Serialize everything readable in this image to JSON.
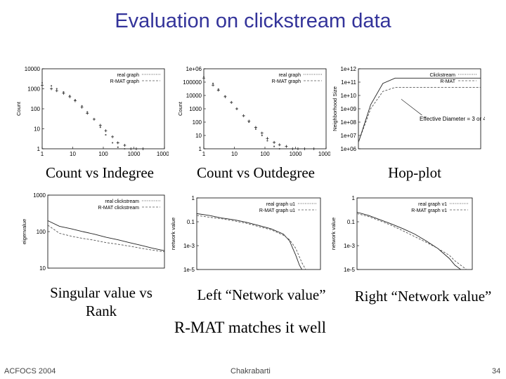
{
  "slide": {
    "title": "Evaluation on clickstream data",
    "tagline": "R-MAT matches it well",
    "footer_left": "ACFOCS 2004",
    "footer_center": "Chakrabarti",
    "page_number": "34"
  },
  "captions": {
    "c1": "Count vs Indegree",
    "c2": "Count vs Outdegree",
    "c3": "Hop-plot",
    "c4_line1": "Singular value vs",
    "c4_line2": "Rank",
    "c5": "Left “Network value”",
    "c6": "Right “Network value”"
  },
  "chart_data": [
    {
      "id": "indegree",
      "type": "scatter",
      "xscale": "log",
      "yscale": "log",
      "xlim": [
        1,
        10000
      ],
      "ylim": [
        1,
        10000
      ],
      "xticks": [
        "1",
        "10",
        "100",
        "1000",
        "10000"
      ],
      "yticks": [
        "1",
        "10",
        "100",
        "1000",
        "10000"
      ],
      "ylabel": "Count",
      "legend": "top-right",
      "series": [
        {
          "name": "real graph",
          "x": [
            1,
            2,
            3,
            5,
            8,
            12,
            20,
            30,
            50,
            80,
            120,
            200,
            300,
            500,
            800,
            1200,
            2000
          ],
          "y": [
            1500,
            1000,
            800,
            600,
            400,
            250,
            120,
            60,
            30,
            15,
            8,
            4,
            2,
            1.5,
            1,
            1,
            1
          ]
        },
        {
          "name": "R-MAT graph",
          "x": [
            1,
            2,
            3,
            5,
            8,
            12,
            20,
            30,
            50,
            80,
            120,
            200,
            300,
            500,
            800
          ],
          "y": [
            2000,
            1400,
            1000,
            700,
            450,
            280,
            140,
            70,
            30,
            12,
            5,
            2,
            1.2,
            1,
            1
          ]
        }
      ]
    },
    {
      "id": "outdegree",
      "type": "scatter",
      "xscale": "log",
      "yscale": "log",
      "xlim": [
        1,
        10000
      ],
      "ylim": [
        1,
        1000000
      ],
      "xticks": [
        "1",
        "10",
        "100",
        "1000",
        "10000"
      ],
      "yticks": [
        "1",
        "10",
        "100",
        "1000",
        "10000",
        "100000",
        "1e+06"
      ],
      "ylabel": "Count",
      "legend": "top-right",
      "series": [
        {
          "name": "real graph",
          "x": [
            1,
            2,
            3,
            5,
            8,
            12,
            20,
            30,
            50,
            80,
            120,
            200,
            300,
            500,
            800,
            1200,
            2000,
            4000
          ],
          "y": [
            200000,
            60000,
            25000,
            8000,
            3000,
            1000,
            300,
            120,
            40,
            15,
            6,
            3,
            2,
            1.5,
            1,
            1,
            1,
            1
          ]
        },
        {
          "name": "R-MAT graph",
          "x": [
            1,
            2,
            3,
            5,
            8,
            12,
            20,
            30,
            50,
            80,
            120,
            200,
            300
          ],
          "y": [
            250000,
            80000,
            30000,
            9000,
            3000,
            1000,
            300,
            100,
            30,
            10,
            4,
            1.5,
            1
          ]
        }
      ]
    },
    {
      "id": "hopplot",
      "type": "line",
      "xscale": "linear",
      "yscale": "log",
      "xlim": [
        0,
        10
      ],
      "ylim": [
        1000000,
        1000000000000
      ],
      "yticks": [
        "1e+06",
        "1e+07",
        "1e+08",
        "1e+09",
        "1e+10",
        "1e+11",
        "1e+12"
      ],
      "ylabel": "Neighborhood Size",
      "legend": "top-right",
      "annotation": "Effective Diameter = 3 or 4",
      "series": [
        {
          "name": "Clickstream",
          "x": [
            0,
            1,
            2,
            3,
            4,
            5,
            10
          ],
          "y": [
            3000000,
            2000000000,
            80000000000,
            200000000000,
            200000000000,
            200000000000,
            200000000000
          ]
        },
        {
          "name": "R-MAT",
          "x": [
            0,
            1,
            2,
            3,
            4,
            5,
            10
          ],
          "y": [
            3000000,
            1000000000,
            20000000000,
            40000000000,
            40000000000,
            40000000000,
            40000000000
          ]
        }
      ]
    },
    {
      "id": "singular",
      "type": "line",
      "xscale": "linear",
      "yscale": "log",
      "xlim": [
        0,
        10
      ],
      "ylim": [
        10,
        1000
      ],
      "yticks": [
        "10",
        "100",
        "1000"
      ],
      "ylabel": "eigenvalue",
      "legend": "top-right",
      "series": [
        {
          "name": "real clickstream",
          "x": [
            0,
            1,
            2,
            3,
            4,
            5,
            6,
            7,
            8,
            9,
            10
          ],
          "y": [
            200,
            140,
            120,
            100,
            85,
            70,
            60,
            50,
            42,
            35,
            30
          ]
        },
        {
          "name": "R-MAT clickstream",
          "x": [
            0,
            1,
            2,
            3,
            4,
            5,
            6,
            7,
            8,
            9,
            10
          ],
          "y": [
            150,
            90,
            75,
            65,
            58,
            50,
            45,
            40,
            35,
            31,
            28
          ]
        }
      ]
    },
    {
      "id": "left_network_value",
      "type": "line",
      "xscale": "linear",
      "yscale": "log",
      "xlim": [
        0,
        10
      ],
      "ylim": [
        1e-05,
        1
      ],
      "yticks": [
        "1e-5",
        "1e-3",
        "0.1",
        "1"
      ],
      "ylabel": "network value",
      "legend": "top-right",
      "series": [
        {
          "name": "real graph u1",
          "x": [
            0,
            1,
            2,
            3,
            4,
            5,
            6,
            7,
            7.5,
            8,
            8.3,
            8.5
          ],
          "y": [
            0.08,
            0.06,
            0.04,
            0.03,
            0.02,
            0.012,
            0.007,
            0.003,
            0.001,
            0.0001,
            2e-05,
            1e-05
          ]
        },
        {
          "name": "R-MAT graph u1",
          "x": [
            0,
            1,
            2,
            3,
            4,
            5,
            6,
            7,
            7.5,
            8,
            8.5,
            8.8
          ],
          "y": [
            0.06,
            0.045,
            0.035,
            0.025,
            0.017,
            0.01,
            0.006,
            0.0025,
            0.0012,
            0.0003,
            3e-05,
            1e-05
          ]
        }
      ]
    },
    {
      "id": "right_network_value",
      "type": "line",
      "xscale": "linear",
      "yscale": "log",
      "xlim": [
        0,
        10
      ],
      "ylim": [
        1e-05,
        1
      ],
      "yticks": [
        "1e-5",
        "1e-3",
        "0.1",
        "1"
      ],
      "ylabel": "network value",
      "legend": "top-right",
      "series": [
        {
          "name": "real graph v1",
          "x": [
            0,
            1,
            2,
            3,
            4,
            5,
            6,
            7,
            8,
            8.5,
            9
          ],
          "y": [
            0.1,
            0.06,
            0.03,
            0.015,
            0.007,
            0.003,
            0.001,
            0.0003,
            6e-05,
            2e-05,
            1e-05
          ]
        },
        {
          "name": "R-MAT graph v1",
          "x": [
            0,
            1,
            2,
            3,
            4,
            5,
            6,
            7,
            8,
            8.5,
            9,
            9.5
          ],
          "y": [
            0.08,
            0.05,
            0.025,
            0.012,
            0.005,
            0.002,
            0.0008,
            0.0003,
            0.0001,
            4e-05,
            2e-05,
            1e-05
          ]
        }
      ]
    }
  ]
}
